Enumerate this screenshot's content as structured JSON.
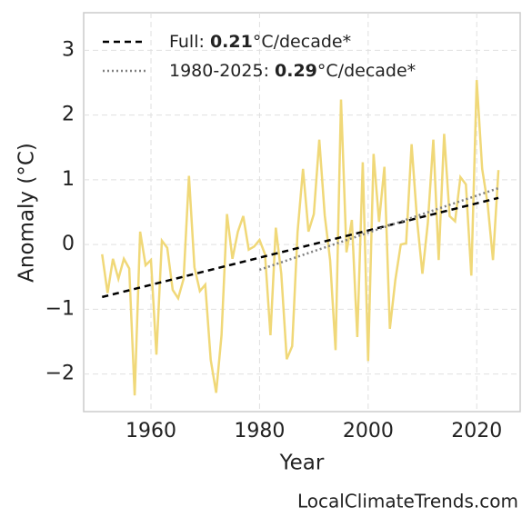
{
  "chart_data": {
    "type": "line",
    "xlabel": "Year",
    "ylabel": "Anomaly (°C)",
    "watermark": "LocalClimateTrends.com",
    "x": [
      1951,
      1952,
      1953,
      1954,
      1955,
      1956,
      1957,
      1958,
      1959,
      1960,
      1961,
      1962,
      1963,
      1964,
      1965,
      1966,
      1967,
      1968,
      1969,
      1970,
      1971,
      1972,
      1973,
      1974,
      1975,
      1976,
      1977,
      1978,
      1979,
      1980,
      1981,
      1982,
      1983,
      1984,
      1985,
      1986,
      1987,
      1988,
      1989,
      1990,
      1991,
      1992,
      1993,
      1994,
      1995,
      1996,
      1997,
      1998,
      1999,
      2000,
      2001,
      2002,
      2003,
      2004,
      2005,
      2006,
      2007,
      2008,
      2009,
      2010,
      2011,
      2012,
      2013,
      2014,
      2015,
      2016,
      2017,
      2018,
      2019,
      2020,
      2021,
      2022,
      2023,
      2024
    ],
    "series": [
      {
        "color": "#f0d878",
        "values": [
          -0.15,
          -0.75,
          -0.22,
          -0.53,
          -0.22,
          -0.37,
          -2.33,
          0.2,
          -0.32,
          -0.24,
          -1.7,
          0.06,
          -0.05,
          -0.7,
          -0.83,
          -0.53,
          1.06,
          -0.35,
          -0.72,
          -0.62,
          -1.78,
          -2.29,
          -1.4,
          0.47,
          -0.22,
          0.2,
          0.44,
          -0.08,
          -0.03,
          0.07,
          -0.15,
          -1.4,
          0.26,
          -0.45,
          -1.77,
          -1.57,
          0.19,
          1.17,
          0.2,
          0.47,
          1.62,
          0.45,
          -0.24,
          -1.63,
          2.24,
          -0.12,
          0.38,
          -1.43,
          1.27,
          -1.8,
          1.4,
          0.35,
          1.2,
          -1.3,
          -0.55,
          0.0,
          0.02,
          1.55,
          0.38,
          -0.45,
          0.34,
          1.62,
          -0.24,
          1.71,
          0.44,
          0.36,
          1.04,
          0.93,
          -0.48,
          2.54,
          1.17,
          0.63,
          -0.24,
          1.15
        ]
      },
      {
        "name": [
          "Full: ",
          "0.21",
          "°C/decade*"
        ],
        "color": "#000000",
        "dash": "7,5",
        "x": [
          1951,
          2024
        ],
        "values": [
          -0.81,
          0.72
        ]
      },
      {
        "name": [
          "1980-2025: ",
          "0.29",
          "°C/decade*"
        ],
        "color": "#808080",
        "dash": "2,3",
        "x": [
          1980,
          2024
        ],
        "values": [
          -0.39,
          0.87
        ]
      }
    ],
    "xlim": [
      1947.6,
      2028.0
    ],
    "ylim": [
      -2.58,
      3.58
    ],
    "xticks": [
      1960,
      1980,
      2000,
      2020
    ],
    "yticks": [
      {
        "value": -2,
        "label": "−2"
      },
      {
        "value": -1,
        "label": "−1"
      },
      0,
      1,
      2,
      3
    ],
    "grid": true,
    "legend": "upper left"
  }
}
